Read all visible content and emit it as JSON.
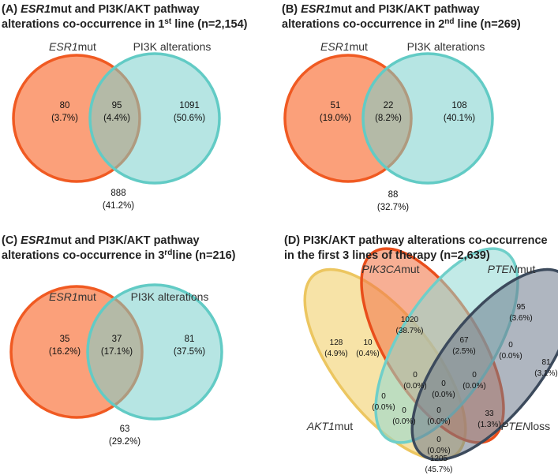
{
  "panels": [
    {
      "title": [
        [
          {
            "text": "(A) "
          },
          {
            "text": "ESR1",
            "italic": true
          },
          {
            "text": "mut and PI3K/AKT pathway"
          }
        ],
        [
          {
            "text": "alterations co-occurrence in 1"
          },
          {
            "text": "st",
            "sup": true
          },
          {
            "text": " line (n=2,154)"
          }
        ]
      ],
      "sets": [
        [
          {
            "text": "ESR1",
            "italic": true
          },
          {
            "text": "mut"
          }
        ],
        [
          {
            "text": "PI3K alterations"
          }
        ]
      ],
      "regions": [
        {
          "count": "80",
          "pct": "(3.7%)"
        },
        {
          "count": "95",
          "pct": "(4.4%)"
        },
        {
          "count": "1091",
          "pct": "(50.6%)"
        },
        {
          "count": "888",
          "pct": "(41.2%)"
        }
      ]
    },
    {
      "title": [
        [
          {
            "text": "(B) "
          },
          {
            "text": "ESR1",
            "italic": true
          },
          {
            "text": "mut and PI3K/AKT pathway"
          }
        ],
        [
          {
            "text": "alterations co-occurrence in 2"
          },
          {
            "text": "nd",
            "sup": true
          },
          {
            "text": " line (n=269)"
          }
        ]
      ],
      "sets": [
        [
          {
            "text": "ESR1",
            "italic": true
          },
          {
            "text": "mut"
          }
        ],
        [
          {
            "text": "PI3K alterations"
          }
        ]
      ],
      "regions": [
        {
          "count": "51",
          "pct": "(19.0%)"
        },
        {
          "count": "22",
          "pct": "(8.2%)"
        },
        {
          "count": "108",
          "pct": "(40.1%)"
        },
        {
          "count": "88",
          "pct": "(32.7%)"
        }
      ]
    },
    {
      "title": [
        [
          {
            "text": "(C) "
          },
          {
            "text": "ESR1",
            "italic": true
          },
          {
            "text": "mut and PI3K/AKT pathway"
          }
        ],
        [
          {
            "text": "alterations co-occurrence in 3"
          },
          {
            "text": "rd",
            "sup": true
          },
          {
            "text": "line (n=216)"
          }
        ]
      ],
      "sets": [
        [
          {
            "text": "ESR1",
            "italic": true
          },
          {
            "text": "mut"
          }
        ],
        [
          {
            "text": "PI3K alterations"
          }
        ]
      ],
      "regions": [
        {
          "count": "35",
          "pct": "(16.2%)"
        },
        {
          "count": "37",
          "pct": "(17.1%)"
        },
        {
          "count": "81",
          "pct": "(37.5%)"
        },
        {
          "count": "63",
          "pct": "(29.2%)"
        }
      ]
    },
    {
      "title": [
        [
          {
            "text": "(D) PI3K/AKT pathway alterations co-occurrence"
          }
        ],
        [
          {
            "text": "in the first 3 lines of therapy (n=2,639)"
          }
        ]
      ],
      "sets": [
        [
          {
            "text": "PIK3CA",
            "italic": true
          },
          {
            "text": "mut"
          }
        ],
        [
          {
            "text": "PTEN",
            "italic": true
          },
          {
            "text": "mut"
          }
        ],
        [
          {
            "text": "AKT1",
            "italic": true
          },
          {
            "text": "mut"
          }
        ],
        [
          {
            "text": "PTEN",
            "italic": true
          },
          {
            "text": "loss"
          }
        ]
      ],
      "regions": [
        {
          "count": "1020",
          "pct": "(38.7%)"
        },
        {
          "count": "95",
          "pct": "(3.6%)"
        },
        {
          "count": "128",
          "pct": "(4.9%)"
        },
        {
          "count": "10",
          "pct": "(0.4%)"
        },
        {
          "count": "67",
          "pct": "(2.5%)"
        },
        {
          "count": "0",
          "pct": "(0.0%)"
        },
        {
          "count": "81",
          "pct": "(3.1%)"
        },
        {
          "count": "0",
          "pct": "(0.0%)"
        },
        {
          "count": "0",
          "pct": "(0.0%)"
        },
        {
          "count": "0",
          "pct": "(0.0%)"
        },
        {
          "count": "33",
          "pct": "(1.3%)"
        },
        {
          "count": "0",
          "pct": "(0.0%)"
        },
        {
          "count": "0",
          "pct": "(0.0%)"
        },
        {
          "count": "0",
          "pct": "(0.0%)"
        },
        {
          "count": "0",
          "pct": "(0.0%)"
        },
        {
          "count": "1205",
          "pct": "(45.7%)"
        }
      ]
    }
  ]
}
